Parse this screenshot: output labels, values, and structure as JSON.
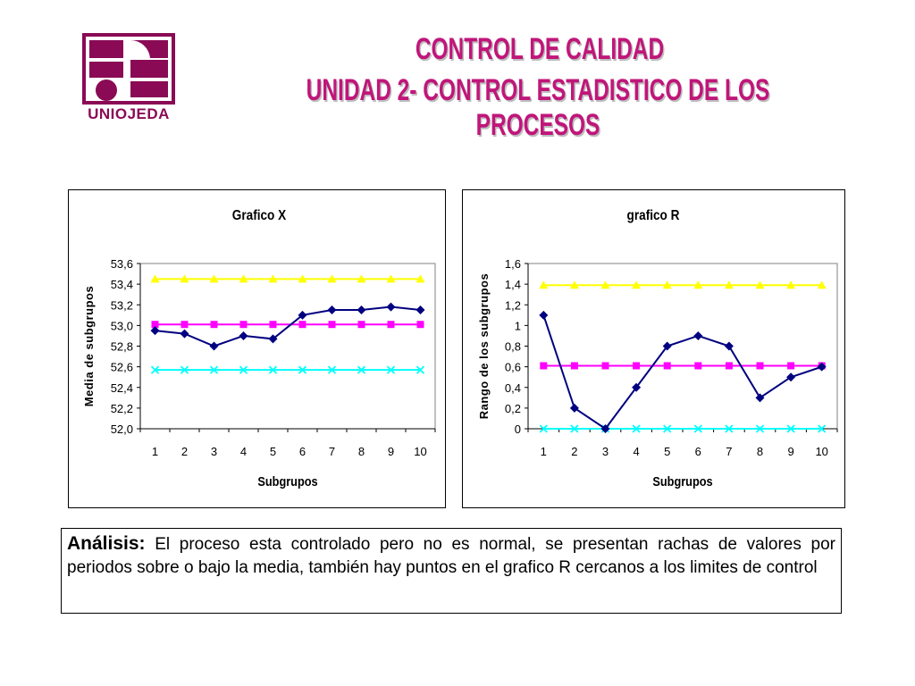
{
  "header": {
    "logo_text": "UNIOJEDA",
    "title_line1": "CONTROL DE CALIDAD",
    "title_line2": "UNIDAD 2- CONTROL ESTADISTICO DE LOS PROCESOS",
    "brand_color": "#8a0a55",
    "title_color": "#c0167a"
  },
  "chart_data": [
    {
      "type": "line",
      "title": "Grafico X",
      "xlabel": "Subgrupos",
      "ylabel": "Media de subgrupos",
      "categories": [
        "1",
        "2",
        "3",
        "4",
        "5",
        "6",
        "7",
        "8",
        "9",
        "10"
      ],
      "ylim": [
        52.0,
        53.6
      ],
      "yticks": [
        "52,0",
        "52,2",
        "52,4",
        "52,6",
        "52,8",
        "53,0",
        "53,2",
        "53,4",
        "53,6"
      ],
      "ytick_values": [
        52.0,
        52.2,
        52.4,
        52.6,
        52.8,
        53.0,
        53.2,
        53.4,
        53.6
      ],
      "series": [
        {
          "values": [
            52.95,
            52.92,
            52.8,
            52.9,
            52.87,
            53.1,
            53.15,
            53.15,
            53.18,
            53.15
          ],
          "color": "#000080",
          "marker": "diamond"
        },
        {
          "values": [
            53.01,
            53.01,
            53.01,
            53.01,
            53.01,
            53.01,
            53.01,
            53.01,
            53.01,
            53.01
          ],
          "color": "#ff00ff",
          "marker": "square"
        },
        {
          "values": [
            53.45,
            53.45,
            53.45,
            53.45,
            53.45,
            53.45,
            53.45,
            53.45,
            53.45,
            53.45
          ],
          "color": "#ffff00",
          "marker": "triangle"
        },
        {
          "values": [
            52.57,
            52.57,
            52.57,
            52.57,
            52.57,
            52.57,
            52.57,
            52.57,
            52.57,
            52.57
          ],
          "color": "#00ffff",
          "marker": "x"
        }
      ],
      "grid": false,
      "plot_background": "#ffffff"
    },
    {
      "type": "line",
      "title": "grafico R",
      "xlabel": "Subgrupos",
      "ylabel": "Rango de los subgrupos",
      "categories": [
        "1",
        "2",
        "3",
        "4",
        "5",
        "6",
        "7",
        "8",
        "9",
        "10"
      ],
      "ylim": [
        0,
        1.6
      ],
      "yticks": [
        "0",
        "0,2",
        "0,4",
        "0,6",
        "0,8",
        "1",
        "1,2",
        "1,4",
        "1,6"
      ],
      "ytick_values": [
        0,
        0.2,
        0.4,
        0.6,
        0.8,
        1.0,
        1.2,
        1.4,
        1.6
      ],
      "series": [
        {
          "values": [
            1.1,
            0.2,
            0.0,
            0.4,
            0.8,
            0.9,
            0.8,
            0.3,
            0.5,
            0.6
          ],
          "color": "#000080",
          "marker": "diamond"
        },
        {
          "values": [
            0.61,
            0.61,
            0.61,
            0.61,
            0.61,
            0.61,
            0.61,
            0.61,
            0.61,
            0.61
          ],
          "color": "#ff00ff",
          "marker": "square"
        },
        {
          "values": [
            1.39,
            1.39,
            1.39,
            1.39,
            1.39,
            1.39,
            1.39,
            1.39,
            1.39,
            1.39
          ],
          "color": "#ffff00",
          "marker": "triangle"
        },
        {
          "values": [
            0,
            0,
            0,
            0,
            0,
            0,
            0,
            0,
            0,
            0
          ],
          "color": "#00ffff",
          "marker": "x"
        }
      ],
      "grid": false,
      "plot_background": "#ffffff"
    }
  ],
  "analysis": {
    "lead": "Análisis:",
    "text": " El proceso esta controlado pero no es normal, se presentan rachas de valores por periodos sobre o bajo la media, también hay puntos en el grafico R cercanos a los limites de control"
  }
}
